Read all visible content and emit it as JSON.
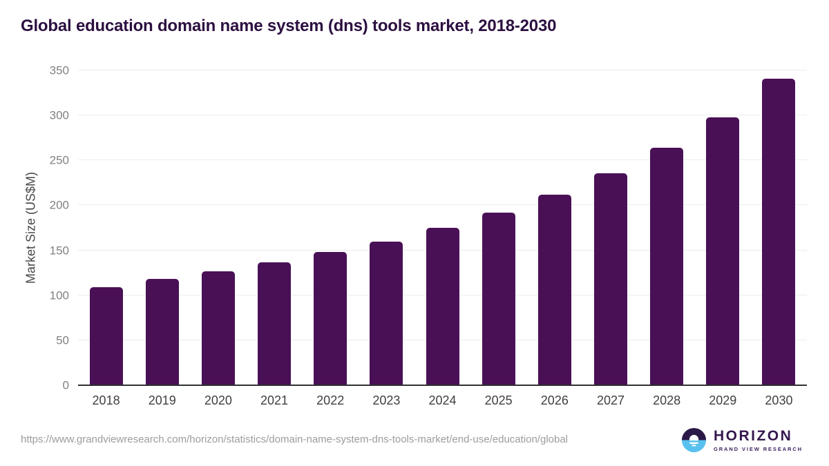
{
  "title": "Global education domain name system (dns) tools market, 2018-2030",
  "chart_data": {
    "type": "bar",
    "categories": [
      "2018",
      "2019",
      "2020",
      "2021",
      "2022",
      "2023",
      "2024",
      "2025",
      "2026",
      "2027",
      "2028",
      "2029",
      "2030"
    ],
    "values": [
      109,
      118,
      127,
      137,
      148,
      160,
      175,
      192,
      212,
      236,
      264,
      298,
      341
    ],
    "title": "Global education domain name system (dns) tools market, 2018-2030",
    "xlabel": "",
    "ylabel": "Market Size (US$M)",
    "ylim": [
      0,
      350
    ],
    "yticks": [
      0,
      50,
      100,
      150,
      200,
      250,
      300,
      350
    ],
    "grid": "horizontal-only",
    "legend": "none",
    "bar_color": "#4a1056"
  },
  "footer": {
    "url": "https://www.grandviewresearch.com/horizon/statistics/domain-name-system-dns-tools-market/end-use/education/global",
    "logo": {
      "name": "HORIZON",
      "subtitle": "GRAND VIEW RESEARCH"
    }
  },
  "colors": {
    "bar": "#4a1056",
    "title_text": "#2c1040",
    "logo_purple": "#35184e",
    "logo_blue": "#58c1ef",
    "gridline": "#ececec",
    "axis_line": "#2f2f2f"
  }
}
